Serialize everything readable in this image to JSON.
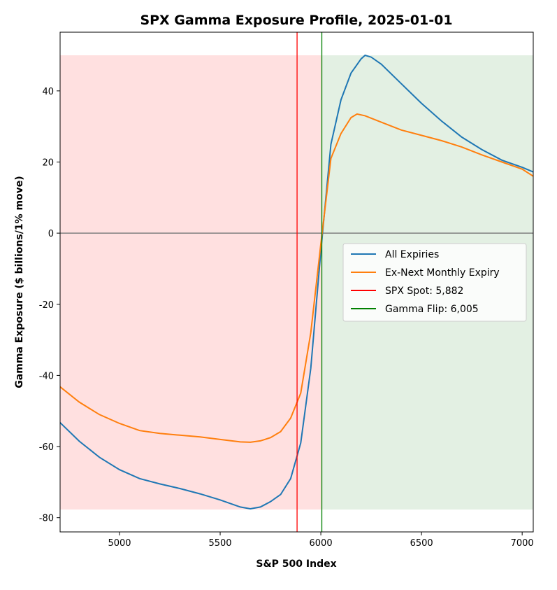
{
  "chart_data": {
    "type": "line",
    "title": "SPX Gamma Exposure Profile, 2025-01-01",
    "xlabel": "S&P 500 Index",
    "ylabel": "Gamma Exposure ($ billions/1% move)",
    "xlim": [
      4705,
      7055
    ],
    "ylim": [
      -84,
      56.5
    ],
    "xticks": [
      5000,
      5500,
      6000,
      6500,
      7000
    ],
    "yticks": [
      -80,
      -60,
      -40,
      -20,
      0,
      20,
      40
    ],
    "grid": false,
    "legend_position": "center-right",
    "series": [
      {
        "name": "All Expiries",
        "color": "#1f77b4",
        "x": [
          4700,
          4800,
          4900,
          5000,
          5100,
          5200,
          5300,
          5400,
          5500,
          5600,
          5650,
          5700,
          5750,
          5800,
          5850,
          5900,
          5950,
          6000,
          6050,
          6100,
          6150,
          6200,
          6220,
          6250,
          6300,
          6400,
          6500,
          6600,
          6700,
          6800,
          6900,
          7000,
          7055
        ],
        "y": [
          -53,
          -58.5,
          -63,
          -66.5,
          -69,
          -70.5,
          -71.8,
          -73.3,
          -75,
          -77,
          -77.5,
          -77,
          -75.5,
          -73.5,
          -69,
          -59,
          -38,
          -5,
          25,
          37.5,
          45,
          49,
          50,
          49.5,
          47.5,
          42,
          36.5,
          31.5,
          27,
          23.5,
          20.5,
          18.5,
          17.2
        ]
      },
      {
        "name": "Ex-Next Monthly Expiry",
        "color": "#ff7f0e",
        "x": [
          4700,
          4800,
          4900,
          5000,
          5100,
          5200,
          5300,
          5400,
          5500,
          5600,
          5650,
          5700,
          5750,
          5800,
          5850,
          5900,
          5950,
          6000,
          6050,
          6100,
          6150,
          6180,
          6220,
          6300,
          6400,
          6500,
          6600,
          6700,
          6800,
          6900,
          7000,
          7055
        ],
        "y": [
          -43,
          -47.5,
          -51,
          -53.5,
          -55.5,
          -56.3,
          -56.8,
          -57.3,
          -58,
          -58.7,
          -58.8,
          -58.4,
          -57.5,
          -55.8,
          -52,
          -45,
          -28,
          -3,
          21,
          28,
          32.5,
          33.5,
          33,
          31.2,
          29,
          27.5,
          26,
          24.2,
          22,
          20,
          18,
          16
        ]
      }
    ],
    "vlines": [
      {
        "name": "SPX Spot: 5,882",
        "x": 5882,
        "color": "#ff0000"
      },
      {
        "name": "Gamma Flip: 6,005",
        "x": 6005,
        "color": "#008000"
      }
    ],
    "hline": {
      "y": 0,
      "color": "#808080"
    },
    "regions": [
      {
        "name": "negative-gamma",
        "x": [
          4705,
          6005
        ],
        "y": [
          -77.7,
          50
        ],
        "color": "#ffe0e0"
      },
      {
        "name": "positive-gamma",
        "x": [
          6005,
          7055
        ],
        "y": [
          -77.7,
          50
        ],
        "color": "#e3f0e3"
      }
    ]
  }
}
